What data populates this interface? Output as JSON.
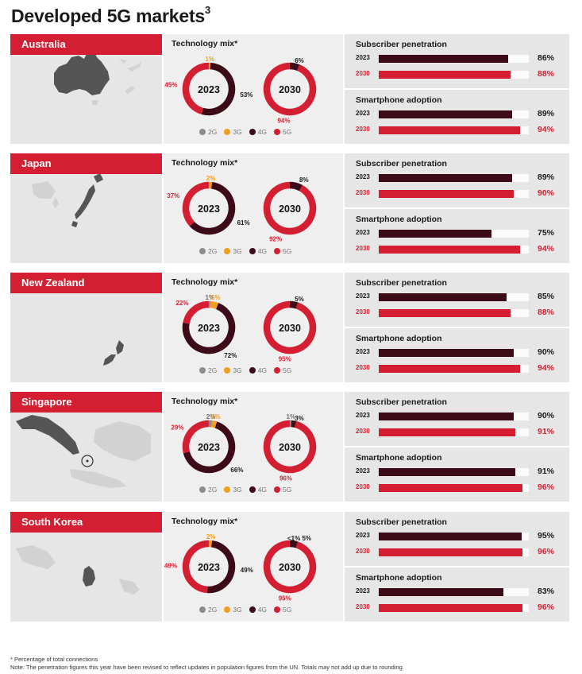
{
  "page": {
    "title": "Developed 5G markets",
    "title_sup": "3",
    "footnote_1": "* Percentage of total connections",
    "footnote_2": "Note: The penetration figures this year have been revised to reflect updates in population figures from the UN. Totals may not add up due to rounding."
  },
  "labels": {
    "technology_mix": "Technology mix*",
    "subscriber_penetration": "Subscriber penetration",
    "smartphone_adoption": "Smartphone adoption"
  },
  "legend": [
    {
      "label": "2G",
      "color": "#8c8c8c"
    },
    {
      "label": "3G",
      "color": "#f39c1e"
    },
    {
      "label": "4G",
      "color": "#3d0a18"
    },
    {
      "label": "5G",
      "color": "#d41f33"
    }
  ],
  "colors": {
    "red": "#d41f33",
    "dark": "#3d0a18",
    "orange": "#f39c1e",
    "grey": "#8c8c8c",
    "track": "#fbfbfb"
  },
  "chart_data": [
    {
      "type": "pie",
      "country": "Australia",
      "title": "Technology mix*",
      "donuts": [
        {
          "center_label": "2023",
          "slices": [
            {
              "tech": "3G",
              "value": 1,
              "label": "1%"
            },
            {
              "tech": "4G",
              "value": 53,
              "label": "53%"
            },
            {
              "tech": "5G",
              "value": 45,
              "label": "45%"
            }
          ]
        },
        {
          "center_label": "2030",
          "slices": [
            {
              "tech": "4G",
              "value": 6,
              "label": "6%"
            },
            {
              "tech": "5G",
              "value": 94,
              "label": "94%"
            }
          ]
        }
      ],
      "subscriber_penetration": [
        {
          "year": "2023",
          "value": 86,
          "label": "86%"
        },
        {
          "year": "2030",
          "value": 88,
          "label": "88%"
        }
      ],
      "smartphone_adoption": [
        {
          "year": "2023",
          "value": 89,
          "label": "89%"
        },
        {
          "year": "2030",
          "value": 94,
          "label": "94%"
        }
      ]
    },
    {
      "type": "pie",
      "country": "Japan",
      "title": "Technology mix*",
      "donuts": [
        {
          "center_label": "2023",
          "slices": [
            {
              "tech": "3G",
              "value": 2,
              "label": "2%"
            },
            {
              "tech": "4G",
              "value": 61,
              "label": "61%"
            },
            {
              "tech": "5G",
              "value": 37,
              "label": "37%"
            }
          ]
        },
        {
          "center_label": "2030",
          "slices": [
            {
              "tech": "4G",
              "value": 8,
              "label": "8%"
            },
            {
              "tech": "5G",
              "value": 92,
              "label": "92%"
            }
          ]
        }
      ],
      "subscriber_penetration": [
        {
          "year": "2023",
          "value": 89,
          "label": "89%"
        },
        {
          "year": "2030",
          "value": 90,
          "label": "90%"
        }
      ],
      "smartphone_adoption": [
        {
          "year": "2023",
          "value": 75,
          "label": "75%"
        },
        {
          "year": "2030",
          "value": 94,
          "label": "94%"
        }
      ]
    },
    {
      "type": "pie",
      "country": "New Zealand",
      "title": "Technology mix*",
      "donuts": [
        {
          "center_label": "2023",
          "slices": [
            {
              "tech": "2G",
              "value": 1,
              "label": "1%"
            },
            {
              "tech": "3G",
              "value": 5,
              "label": "5%"
            },
            {
              "tech": "4G",
              "value": 72,
              "label": "72%"
            },
            {
              "tech": "5G",
              "value": 22,
              "label": "22%"
            }
          ]
        },
        {
          "center_label": "2030",
          "slices": [
            {
              "tech": "4G",
              "value": 5,
              "label": "5%"
            },
            {
              "tech": "5G",
              "value": 95,
              "label": "95%"
            }
          ]
        }
      ],
      "subscriber_penetration": [
        {
          "year": "2023",
          "value": 85,
          "label": "85%"
        },
        {
          "year": "2030",
          "value": 88,
          "label": "88%"
        }
      ],
      "smartphone_adoption": [
        {
          "year": "2023",
          "value": 90,
          "label": "90%"
        },
        {
          "year": "2030",
          "value": 94,
          "label": "94%"
        }
      ]
    },
    {
      "type": "pie",
      "country": "Singapore",
      "title": "Technology mix*",
      "donuts": [
        {
          "center_label": "2023",
          "slices": [
            {
              "tech": "2G",
              "value": 2,
              "label": "2%"
            },
            {
              "tech": "3G",
              "value": 3,
              "label": "3%"
            },
            {
              "tech": "4G",
              "value": 66,
              "label": "66%"
            },
            {
              "tech": "5G",
              "value": 29,
              "label": "29%"
            }
          ]
        },
        {
          "center_label": "2030",
          "slices": [
            {
              "tech": "2G",
              "value": 1,
              "label": "1%"
            },
            {
              "tech": "4G",
              "value": 3,
              "label": "3%"
            },
            {
              "tech": "5G",
              "value": 96,
              "label": "96%"
            }
          ]
        }
      ],
      "subscriber_penetration": [
        {
          "year": "2023",
          "value": 90,
          "label": "90%"
        },
        {
          "year": "2030",
          "value": 91,
          "label": "91%"
        }
      ],
      "smartphone_adoption": [
        {
          "year": "2023",
          "value": 91,
          "label": "91%"
        },
        {
          "year": "2030",
          "value": 96,
          "label": "96%"
        }
      ]
    },
    {
      "type": "pie",
      "country": "South Korea",
      "title": "Technology mix*",
      "donuts": [
        {
          "center_label": "2023",
          "slices": [
            {
              "tech": "3G",
              "value": 2,
              "label": "2%"
            },
            {
              "tech": "4G",
              "value": 49,
              "label": "49%"
            },
            {
              "tech": "5G",
              "value": 49,
              "label": "49%"
            }
          ]
        },
        {
          "center_label": "2030",
          "slices": [
            {
              "tech": "4G",
              "value": 5,
              "label": "<1% 5%"
            },
            {
              "tech": "5G",
              "value": 95,
              "label": "95%"
            }
          ]
        }
      ],
      "subscriber_penetration": [
        {
          "year": "2023",
          "value": 95,
          "label": "95%"
        },
        {
          "year": "2030",
          "value": 96,
          "label": "96%"
        }
      ],
      "smartphone_adoption": [
        {
          "year": "2023",
          "value": 83,
          "label": "83%"
        },
        {
          "year": "2030",
          "value": 96,
          "label": "96%"
        }
      ]
    }
  ]
}
